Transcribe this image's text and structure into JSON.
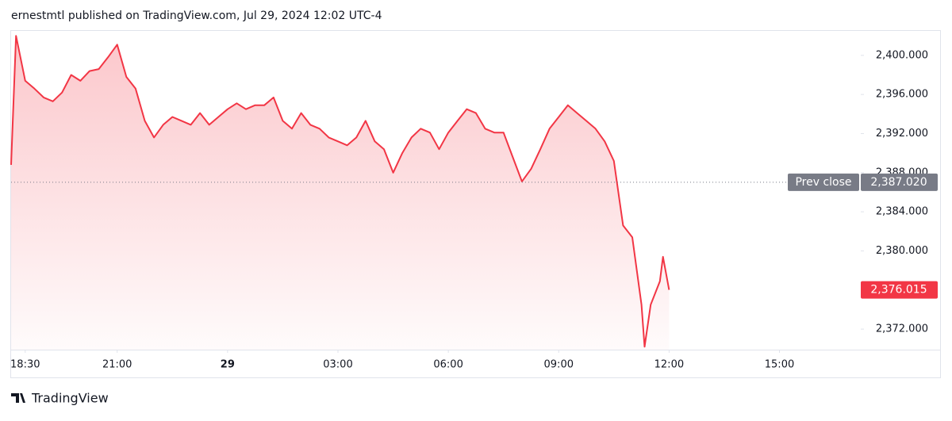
{
  "header": {
    "title": "ernestmtl published on TradingView.com, Jul 29, 2024 12:02 UTC-4"
  },
  "footer": {
    "brand": "TradingView"
  },
  "chart_data": {
    "type": "area",
    "color": "#f23645",
    "x": [
      "18:07",
      "18:15",
      "18:30",
      "18:45",
      "19:00",
      "19:15",
      "19:30",
      "19:45",
      "20:00",
      "20:15",
      "20:30",
      "20:45",
      "21:00",
      "21:15",
      "21:30",
      "21:45",
      "22:00",
      "22:15",
      "22:30",
      "22:45",
      "23:00",
      "23:15",
      "23:30",
      "23:45",
      "00:00",
      "00:15",
      "00:30",
      "00:45",
      "01:00",
      "01:15",
      "01:30",
      "01:45",
      "02:00",
      "02:15",
      "02:30",
      "02:45",
      "03:00",
      "03:15",
      "03:30",
      "03:45",
      "04:00",
      "04:15",
      "04:30",
      "04:45",
      "05:00",
      "05:15",
      "05:30",
      "05:45",
      "06:00",
      "06:15",
      "06:30",
      "06:45",
      "07:00",
      "07:15",
      "07:30",
      "07:45",
      "08:00",
      "08:15",
      "08:30",
      "08:45",
      "09:00",
      "09:15",
      "09:30",
      "09:45",
      "10:00",
      "10:15",
      "10:30",
      "10:45",
      "11:00",
      "11:15",
      "11:20",
      "11:30",
      "11:45",
      "11:50",
      "12:00"
    ],
    "values": [
      2388.8,
      2402.0,
      2397.4,
      2396.6,
      2395.7,
      2395.3,
      2396.2,
      2398.0,
      2397.4,
      2398.4,
      2398.6,
      2399.8,
      2401.1,
      2397.8,
      2396.6,
      2393.3,
      2391.6,
      2392.9,
      2393.7,
      2393.3,
      2392.9,
      2394.1,
      2392.9,
      2393.7,
      2394.5,
      2395.1,
      2394.5,
      2394.9,
      2394.9,
      2395.7,
      2393.3,
      2392.5,
      2394.1,
      2392.9,
      2392.5,
      2391.6,
      2391.2,
      2390.8,
      2391.6,
      2393.3,
      2391.2,
      2390.4,
      2388.0,
      2390.0,
      2391.6,
      2392.5,
      2392.1,
      2390.4,
      2392.1,
      2393.3,
      2394.5,
      2394.1,
      2392.5,
      2392.1,
      2392.1,
      2389.6,
      2387.1,
      2388.4,
      2390.4,
      2392.5,
      2393.7,
      2394.9,
      2394.1,
      2393.3,
      2392.5,
      2391.2,
      2389.2,
      2382.6,
      2381.4,
      2374.5,
      2370.2,
      2374.5,
      2376.9,
      2379.4,
      2376.015
    ],
    "xlim": [
      "18:07",
      "17:10"
    ],
    "xticks": [
      {
        "value": "18:30",
        "label": "18:30"
      },
      {
        "value": "21:00",
        "label": "21:00"
      },
      {
        "value": "00:00",
        "label": "29"
      },
      {
        "value": "03:00",
        "label": "03:00"
      },
      {
        "value": "06:00",
        "label": "06:00"
      },
      {
        "value": "09:00",
        "label": "09:00"
      },
      {
        "value": "12:00",
        "label": "12:00"
      },
      {
        "value": "15:00",
        "label": "15:00"
      }
    ],
    "ylim": [
      2369.9,
      2402.5
    ],
    "yticks": [
      {
        "value": 2372,
        "label": "2,372.000"
      },
      {
        "value": 2380,
        "label": "2,380.000"
      },
      {
        "value": 2384,
        "label": "2,384.000"
      },
      {
        "value": 2388,
        "label": "2,388.000"
      },
      {
        "value": 2392,
        "label": "2,392.000"
      },
      {
        "value": 2396,
        "label": "2,396.000"
      },
      {
        "value": 2400,
        "label": "2,400.000"
      }
    ],
    "prev_close": {
      "name": "Prev close",
      "value": 2387.02,
      "label": "2,387.020"
    },
    "last_price": {
      "value": 2376.015,
      "label": "2,376.015"
    }
  }
}
